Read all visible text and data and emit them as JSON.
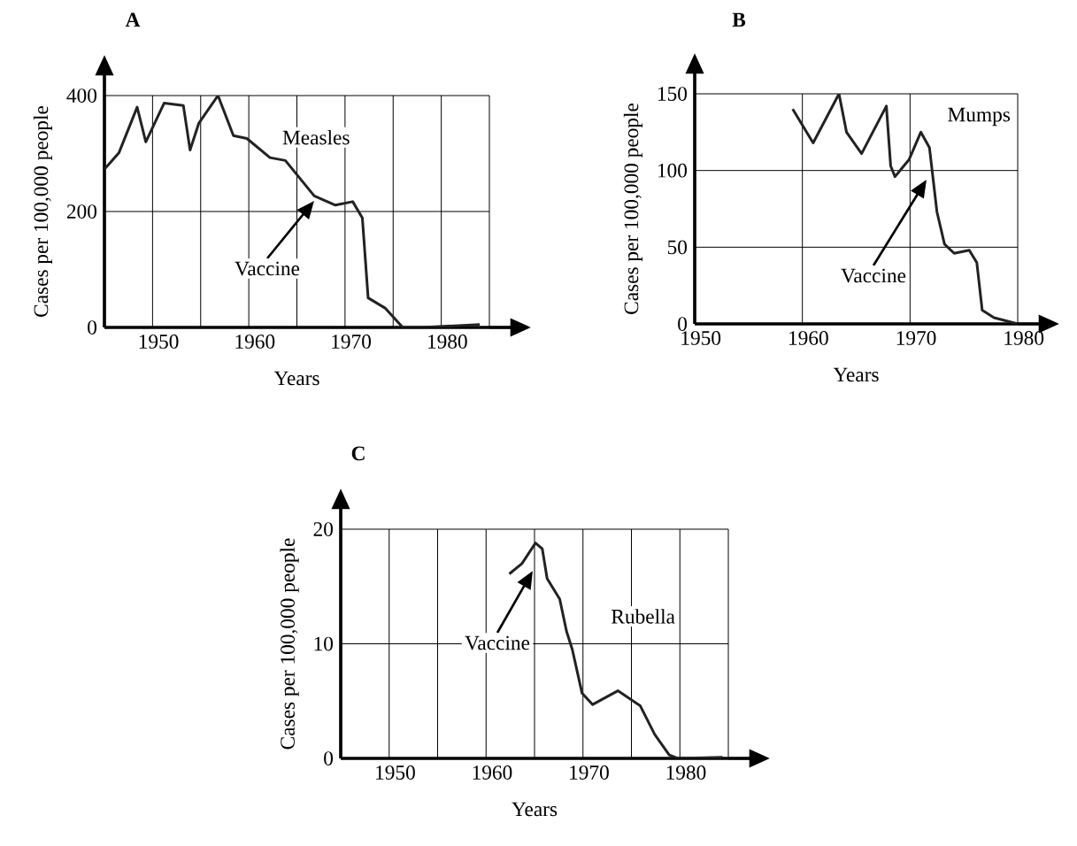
{
  "chart_data": [
    {
      "type": "line",
      "title": "A",
      "xlabel": "Years",
      "ylabel": "Cases per 100,000 people",
      "grid": true,
      "xlim": [
        1945,
        1985
      ],
      "ylim": [
        0,
        400
      ],
      "xticks": [
        {
          "value": 1945,
          "label": null
        },
        1950,
        {
          "value": 1955,
          "label": null
        },
        1960,
        {
          "value": 1965,
          "label": null
        },
        1970,
        {
          "value": 1975,
          "label": null
        },
        1980,
        {
          "value": 1985,
          "label": null
        }
      ],
      "yticks": [
        0,
        200,
        400
      ],
      "series": [
        {
          "name": "Measles",
          "color": "#222222",
          "x": [
            1945,
            1946.5,
            1948.4,
            1949.3,
            1951.2,
            1953.2,
            1953.9,
            1954.8,
            1956.8,
            1958.4,
            1959.8,
            1962.2,
            1963.8,
            1966.8,
            1969,
            1970.8,
            1971.8,
            1972.4,
            1974.2,
            1976,
            1978,
            1984
          ],
          "values": [
            273,
            301,
            380,
            320,
            387,
            383,
            306,
            352,
            400,
            331,
            326,
            293,
            288,
            227,
            211,
            217,
            189,
            51,
            33,
            0,
            0,
            5
          ]
        }
      ],
      "annotations": [
        "Vaccine"
      ]
    },
    {
      "type": "line",
      "title": "B",
      "xlabel": "Years",
      "ylabel": "Cases per 100,000 people",
      "grid": true,
      "xlim": [
        1950,
        1980
      ],
      "ylim": [
        0,
        150
      ],
      "xticks": [
        1950,
        1960,
        1970,
        1980
      ],
      "yticks": [
        0,
        50,
        100,
        150
      ],
      "series": [
        {
          "name": "Mumps",
          "color": "#222222",
          "x": [
            1959.1,
            1961,
            1963.4,
            1964.1,
            1965.5,
            1967.8,
            1968.2,
            1968.6,
            1969.9,
            1971,
            1971.8,
            1972.5,
            1973.2,
            1974.1,
            1975.5,
            1976.2,
            1976.7,
            1977.8,
            1980
          ],
          "values": [
            140,
            118,
            150,
            125,
            111,
            142,
            103,
            96,
            107,
            125,
            115,
            73,
            52,
            46,
            48,
            40,
            9,
            4,
            0
          ]
        }
      ],
      "annotations": [
        "Vaccine"
      ]
    },
    {
      "type": "line",
      "title": "C",
      "xlabel": "Years",
      "ylabel": "Cases per 100,000 people",
      "grid": true,
      "xlim": [
        1945,
        1985
      ],
      "ylim": [
        0,
        20
      ],
      "xticks": [
        {
          "value": 1945,
          "label": null
        },
        1950,
        {
          "value": 1955,
          "label": null
        },
        1960,
        {
          "value": 1965,
          "label": null
        },
        1970,
        {
          "value": 1975,
          "label": null
        },
        1980,
        {
          "value": 1985,
          "label": null
        }
      ],
      "yticks": [
        0,
        10,
        20
      ],
      "series": [
        {
          "name": "Rubella",
          "color": "#222222",
          "x": [
            1962.4,
            1963.7,
            1965.1,
            1965.8,
            1966.3,
            1967.6,
            1968.3,
            1968.9,
            1969.9,
            1971,
            1973.6,
            1975.9,
            1977.4,
            1978.9,
            1979.8,
            1984.4
          ],
          "values": [
            16.1,
            17.0,
            18.8,
            18.3,
            15.7,
            13.9,
            11.1,
            9.5,
            5.7,
            4.7,
            5.9,
            4.6,
            2.1,
            0.3,
            0,
            0.1
          ]
        }
      ],
      "annotations": [
        "Vaccine"
      ]
    }
  ]
}
